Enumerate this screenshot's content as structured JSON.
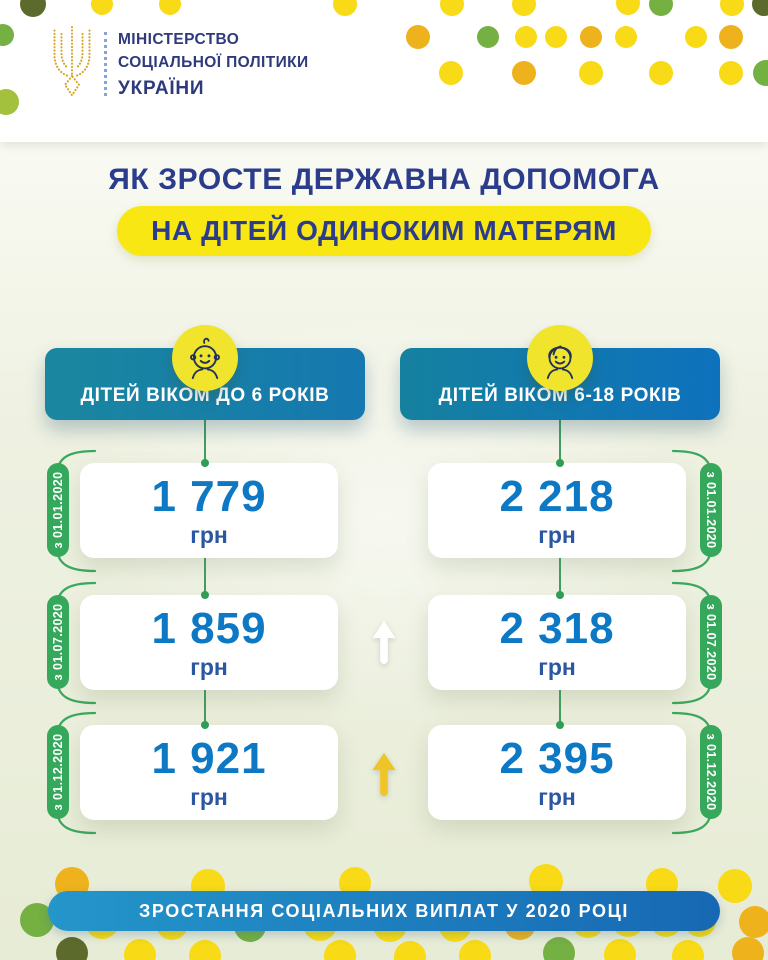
{
  "palette": {
    "navy": "#2c3c8c",
    "value_blue": "#0d78c4",
    "currency_blue": "#2a56a2",
    "header_teal": "#1a879f",
    "header_blue": "#0e71bd",
    "green": "#35a85c",
    "pill_yellow": "#f8e712",
    "icon_yellow": "#f0e42c",
    "ribbon_blue": "#2496ca",
    "dot_yellow": "#f8da16",
    "dot_gold": "#eeb31c",
    "dot_green": "#75b043",
    "dot_olive": "#5c6b2b"
  },
  "logo": {
    "line1": "МІНІСТЕРСТВО",
    "line2": "СОЦІАЛЬНОЇ ПОЛІТИКИ",
    "line3": "УКРАЇНИ"
  },
  "title": {
    "line1": "ЯК ЗРОСТЕ ДЕРЖАВНА ДОПОМОГА",
    "line2": "НА ДІТЕЙ ОДИНОКИМ МАТЕРЯМ"
  },
  "columns": [
    {
      "header": "ДІТЕЙ ВІКОМ ДО 6 РОКІВ",
      "icon": "baby-icon",
      "rows": [
        {
          "date": "з 01.01.2020",
          "amount": "1 779",
          "currency": "грн"
        },
        {
          "date": "з 01.07.2020",
          "amount": "1 859",
          "currency": "грн"
        },
        {
          "date": "з 01.12.2020",
          "amount": "1 921",
          "currency": "грн"
        }
      ]
    },
    {
      "header": "ДІТЕЙ ВІКОМ 6-18 РОКІВ",
      "icon": "girl-icon",
      "rows": [
        {
          "date": "з 01.01.2020",
          "amount": "2 218",
          "currency": "грн"
        },
        {
          "date": "з 01.07.2020",
          "amount": "2 318",
          "currency": "грн"
        },
        {
          "date": "з 01.12.2020",
          "amount": "2 395",
          "currency": "грн"
        }
      ]
    }
  ],
  "footer": {
    "banner": "ЗРОСТАННЯ СОЦІАЛЬНИХ ВИПЛАТ У 2020 РОЦІ"
  },
  "chart_data": {
    "type": "table",
    "title": "ЯК ЗРОСТЕ ДЕРЖАВНА ДОПОМОГА НА ДІТЕЙ ОДИНОКИМ МАТЕРЯМ",
    "categories": [
      "з 01.01.2020",
      "з 01.07.2020",
      "з 01.12.2020"
    ],
    "series": [
      {
        "name": "ДІТЕЙ ВІКОМ ДО 6 РОКІВ",
        "values": [
          1779,
          1859,
          1921
        ]
      },
      {
        "name": "ДІТЕЙ ВІКОМ 6-18 РОКІВ",
        "values": [
          2218,
          2318,
          2395
        ]
      }
    ],
    "unit": "грн",
    "footer": "ЗРОСТАННЯ СОЦІАЛЬНИХ ВИПЛАТ У 2020 РОЦІ"
  }
}
